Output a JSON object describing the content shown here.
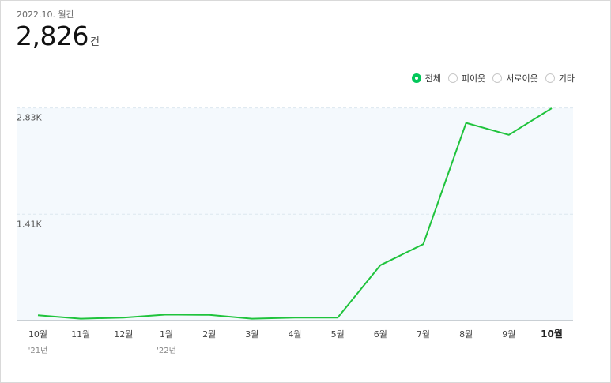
{
  "header": {
    "period": "2022.10. 월간",
    "total_value": "2,826",
    "total_unit": "건"
  },
  "legend": {
    "items": [
      {
        "label": "전체",
        "checked": true
      },
      {
        "label": "피이웃",
        "checked": false
      },
      {
        "label": "서로이웃",
        "checked": false
      },
      {
        "label": "기타",
        "checked": false
      }
    ]
  },
  "colors": {
    "line": "#1fc33c",
    "plot_bg": "#f4f9fd",
    "grid": "#dce8ef",
    "selected": "#03c75a"
  },
  "chart_data": {
    "type": "line",
    "categories": [
      "10월",
      "11월",
      "12월",
      "1월",
      "2월",
      "3월",
      "4월",
      "5월",
      "6월",
      "7월",
      "8월",
      "9월",
      "10월"
    ],
    "year_labels": [
      "'21년",
      "",
      "",
      "'22년",
      "",
      "",
      "",
      "",
      "",
      "",
      "",
      "",
      ""
    ],
    "highlight_index": 12,
    "series": [
      {
        "values": [
          60,
          15,
          30,
          70,
          65,
          15,
          30,
          30,
          730,
          1010,
          2630,
          2470,
          2826
        ]
      }
    ],
    "yticks": [
      {
        "value": 1410,
        "label": "1.41K"
      },
      {
        "value": 2830,
        "label": "2.83K"
      }
    ],
    "ylim": [
      0,
      2826
    ],
    "grid": true
  }
}
